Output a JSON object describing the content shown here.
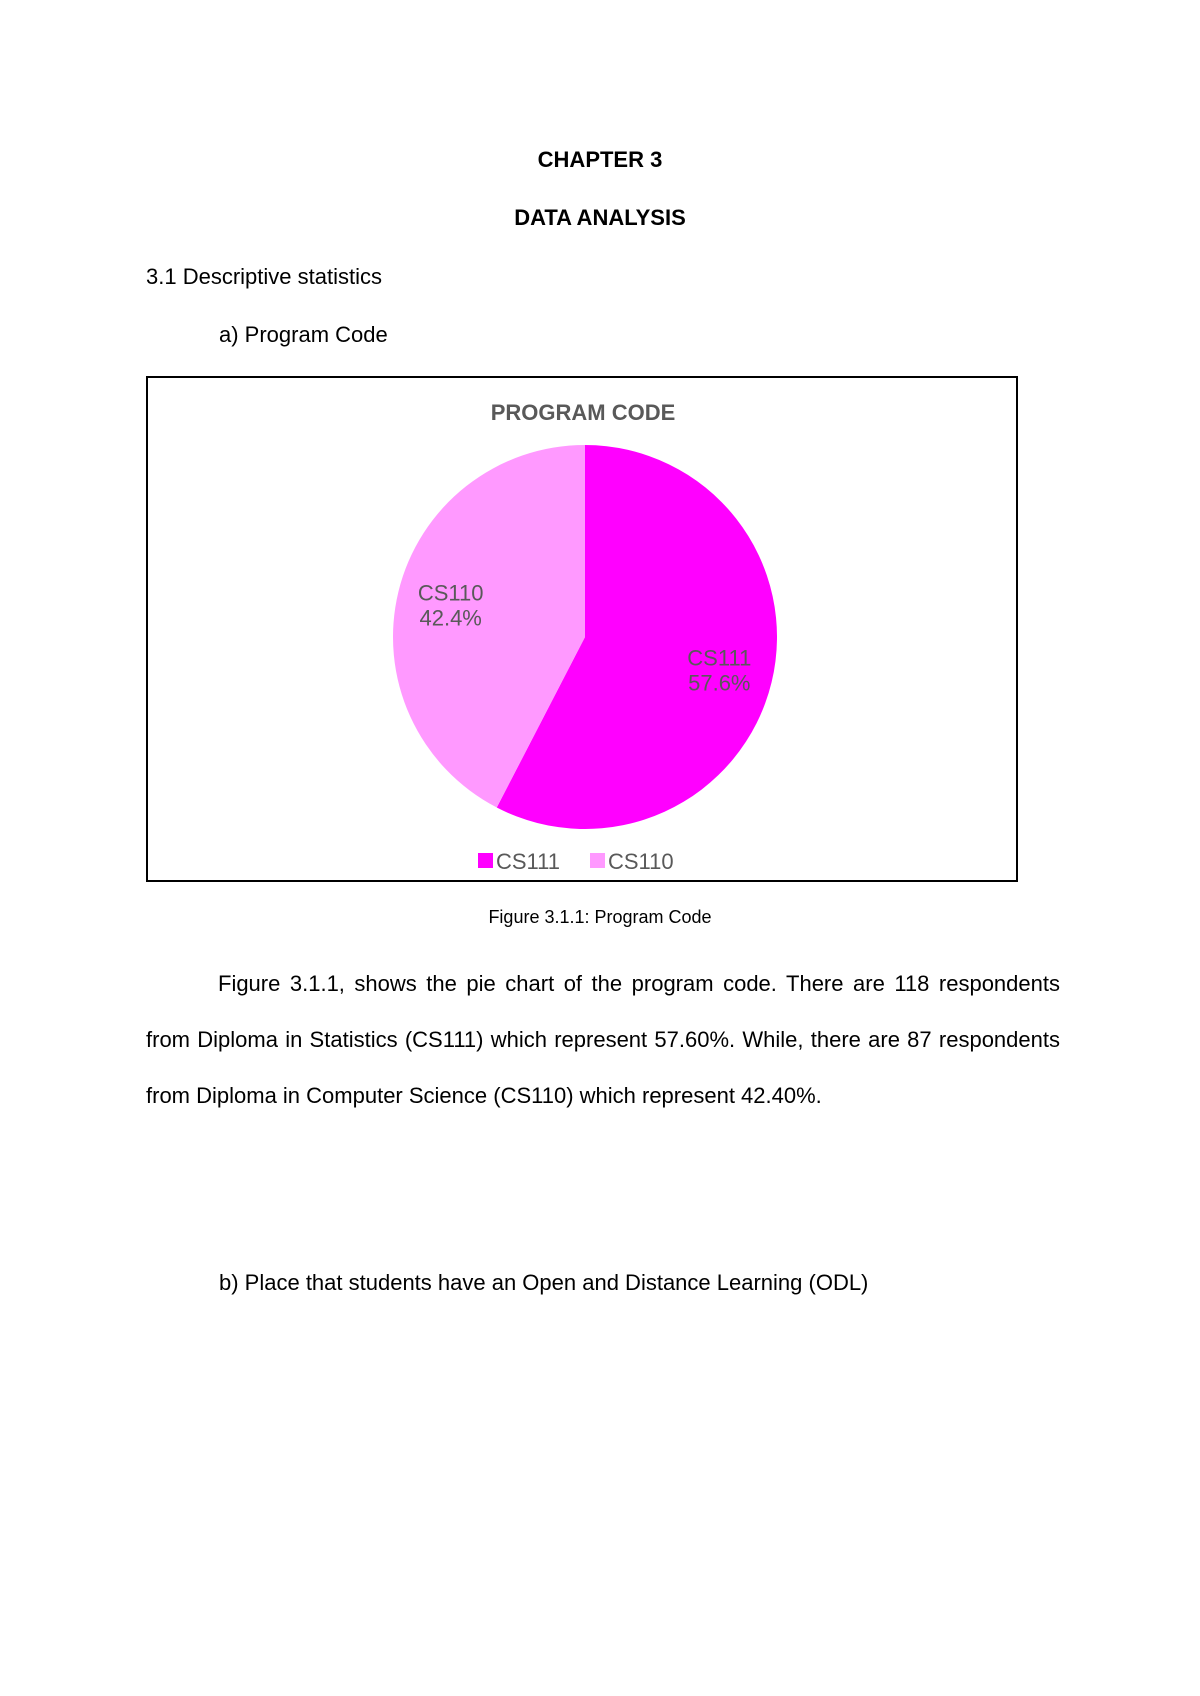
{
  "heading": {
    "chapter": "CHAPTER 3",
    "title": "DATA ANALYSIS"
  },
  "section": "3.1 Descriptive statistics",
  "subsection_a": "a)  Program Code",
  "figure_caption": "Figure 3.1.1: Program Code",
  "paragraph": "Figure 3.1.1, shows the pie chart of the program code. There are 118 respondents from Diploma in Statistics (CS111) which represent 57.60%. While, there are 87 respondents from Diploma in Computer Science (CS110) which represent 42.40%.",
  "subsection_b": "b)  Place that students have an Open and Distance Learning (ODL)",
  "chart_data": {
    "type": "pie",
    "title": "PROGRAM CODE",
    "categories": [
      "CS111",
      "CS110"
    ],
    "values": [
      57.6,
      42.4
    ],
    "data_labels": [
      "CS111\n57.6%",
      "CS110\n42.4%"
    ],
    "colors": [
      "#ff00ff",
      "#ff99ff"
    ],
    "start_angle": "12 o'clock, clockwise",
    "legend": {
      "position": "bottom",
      "entries": [
        "CS111",
        "CS110"
      ]
    }
  }
}
